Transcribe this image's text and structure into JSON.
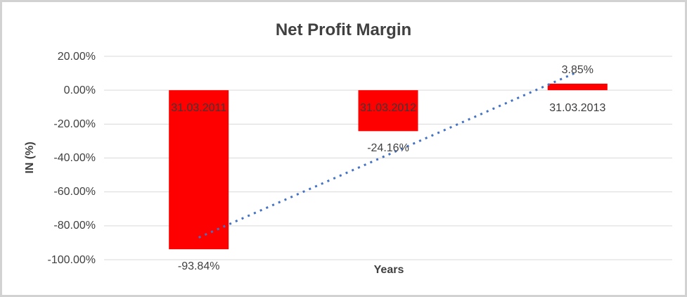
{
  "frame": {
    "background": "#FFFFFF",
    "border_color": "#D2D2D2"
  },
  "chart_data": {
    "type": "bar",
    "title": "Net Profit Margin",
    "xlabel": "Years",
    "ylabel": "IN (%)",
    "categories": [
      "31.03.2011",
      "31.03.2012",
      "31.03.2013"
    ],
    "values": [
      -93.84,
      -24.16,
      3.85
    ],
    "data_labels": [
      "-93.84%",
      "-24.16%",
      "3.85%"
    ],
    "ylim": [
      -100,
      20
    ],
    "yticks": [
      {
        "value": 20,
        "label": "20.00%"
      },
      {
        "value": 0,
        "label": "0.00%"
      },
      {
        "value": -20,
        "label": "-20.00%"
      },
      {
        "value": -40,
        "label": "-40.00%"
      },
      {
        "value": -60,
        "label": "-60.00%"
      },
      {
        "value": -80,
        "label": "-80.00%"
      },
      {
        "value": -100,
        "label": "-100.00%"
      }
    ],
    "grid": true,
    "legend": false,
    "bar_color": "#FF0000",
    "gridline_color": "#D9D9D9",
    "text_color": "#404040",
    "trendline": {
      "type": "linear",
      "style": "dotted",
      "color": "#4472C4"
    }
  }
}
